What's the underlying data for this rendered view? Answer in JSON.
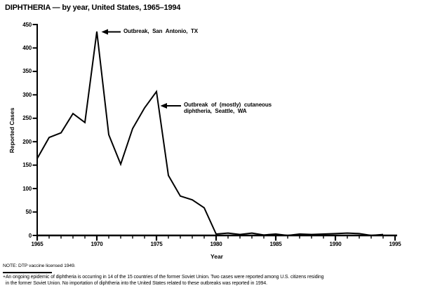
{
  "title": "DIPHTHERIA — by year, United States, 1965–1994",
  "colors": {
    "line": "#000000",
    "text": "#000000",
    "background": "#ffffff"
  },
  "chart_data": {
    "type": "line",
    "title": "DIPHTHERIA — by year, United States, 1965–1994",
    "xlabel": "Year",
    "ylabel": "Reported Cases",
    "xlim": [
      1965,
      1995
    ],
    "ylim": [
      0,
      450
    ],
    "x_ticks": [
      1965,
      1970,
      1975,
      1980,
      1985,
      1990,
      1995
    ],
    "y_ticks": [
      0,
      50,
      100,
      150,
      200,
      250,
      300,
      350,
      400,
      450
    ],
    "grid": false,
    "legend": false,
    "line_color": "#000000",
    "x": [
      1965,
      1966,
      1967,
      1968,
      1969,
      1970,
      1971,
      1972,
      1973,
      1974,
      1975,
      1976,
      1977,
      1978,
      1979,
      1980,
      1981,
      1982,
      1983,
      1984,
      1985,
      1986,
      1987,
      1988,
      1989,
      1990,
      1991,
      1992,
      1993,
      1994
    ],
    "values": [
      164,
      209,
      219,
      260,
      241,
      435,
      215,
      152,
      228,
      272,
      307,
      128,
      84,
      76,
      59,
      3,
      5,
      2,
      5,
      1,
      3,
      0,
      3,
      2,
      3,
      4,
      5,
      4,
      0,
      2
    ],
    "annotations": [
      {
        "text_lines": [
          "Outbreak, San Antonio, TX"
        ],
        "points_to": {
          "year": 1970,
          "value": 435
        }
      },
      {
        "text_lines": [
          "Outbreak of (mostly) cutaneous",
          "diphtheria, Seattle, WA"
        ],
        "points_to": {
          "year": 1975,
          "value": 307
        }
      }
    ]
  },
  "notes": {
    "note": "NOTE: DTP vaccine licensed 1949.",
    "footnote_marker": "+",
    "footnote_line1": "An ongoing epidemic of diphtheria is occurring in 14 of the 15 countries of the former Soviet Union. Two cases were reported among U.S. citizens residing",
    "footnote_line2": "in the former Soviet Union. No importation of diphtheria into the United States related to these outbreaks was reported in 1994."
  }
}
